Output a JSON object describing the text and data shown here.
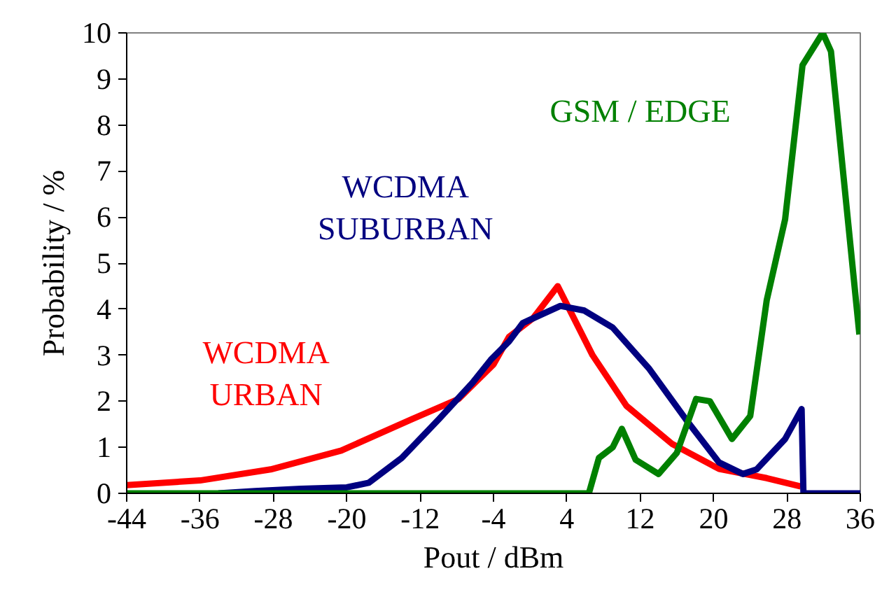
{
  "chart_data": {
    "type": "line",
    "xlabel": "Pout / dBm",
    "ylabel": "Probability / %",
    "xlim": [
      -44,
      36
    ],
    "ylim": [
      0,
      10
    ],
    "xticks": [
      -44,
      -36,
      -28,
      -20,
      -12,
      -4,
      4,
      12,
      20,
      28,
      36
    ],
    "yticks": [
      0,
      1,
      2,
      3,
      4,
      5,
      6,
      7,
      8,
      9,
      10
    ],
    "grid": false,
    "marker": "none",
    "line_style": "solid",
    "series": [
      {
        "name": "WCDMA\nURBAN",
        "color": "#ff0000",
        "x": [
          -44,
          -36,
          -28.3,
          -20.6,
          -13,
          -7.8,
          -4,
          -2.3,
          0.3,
          3,
          6.8,
          10.5,
          15.5,
          20.6,
          25.8,
          29.5
        ],
        "values": [
          0.18,
          0.28,
          0.52,
          0.93,
          1.6,
          2.05,
          2.8,
          3.4,
          3.8,
          4.5,
          3.0,
          1.9,
          1.07,
          0.53,
          0.33,
          0.15
        ]
      },
      {
        "name": "WCDMA\nSUBURBAN",
        "color": "#000080",
        "x": [
          -34,
          -30,
          -25,
          -20,
          -17.6,
          -14,
          -10,
          -6.3,
          -4.3,
          -2.3,
          -0.8,
          3.3,
          5.9,
          9,
          13,
          17,
          20.6,
          23.2,
          24.7,
          27.8,
          29.6,
          29.8,
          36
        ],
        "values": [
          0,
          0.05,
          0.1,
          0.13,
          0.23,
          0.77,
          1.6,
          2.4,
          2.9,
          3.3,
          3.7,
          4.07,
          3.97,
          3.6,
          2.7,
          1.6,
          0.67,
          0.42,
          0.52,
          1.18,
          1.83,
          0,
          0
        ]
      },
      {
        "name": "GSM / EDGE",
        "color": "#008000",
        "x": [
          -44,
          6.4,
          7.5,
          9,
          10,
          11.5,
          14,
          16,
          18.1,
          19.6,
          22,
          24,
          25.8,
          27.8,
          29.7,
          31.9,
          32.8,
          35.9
        ],
        "values": [
          0,
          0,
          0.77,
          1.0,
          1.4,
          0.73,
          0.42,
          0.88,
          2.05,
          2.0,
          1.18,
          1.68,
          4.2,
          5.95,
          9.3,
          10.0,
          9.6,
          3.45
        ]
      }
    ]
  }
}
